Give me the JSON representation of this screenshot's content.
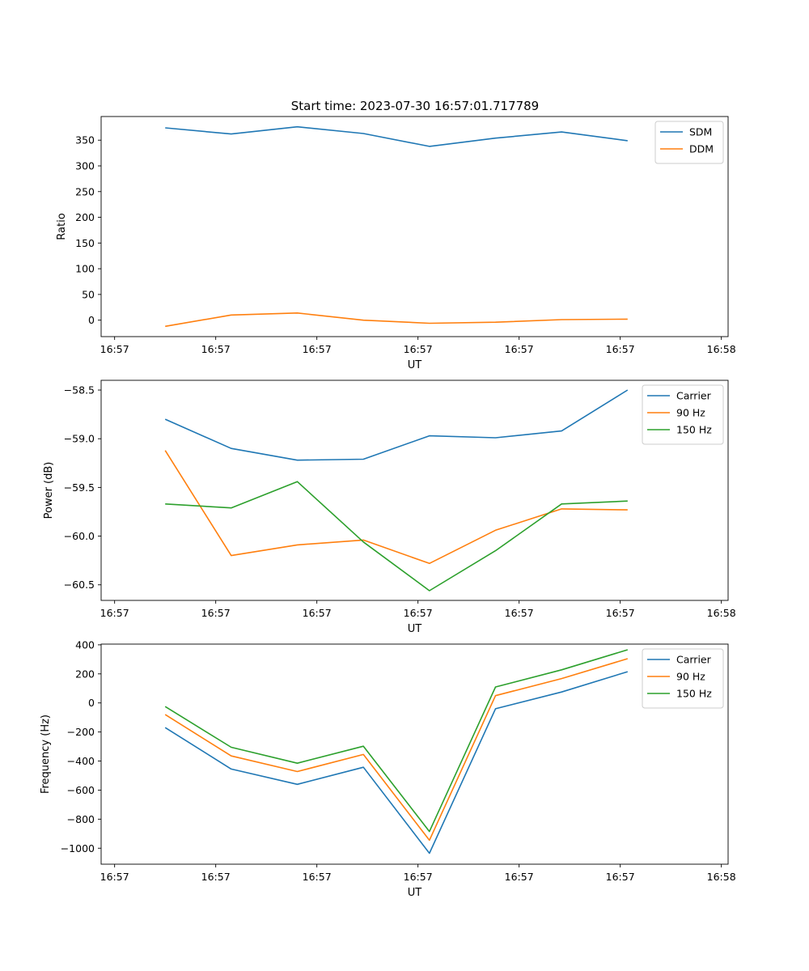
{
  "figure_title": "Start time: 2023-07-30 16:57:01.717789",
  "colors": {
    "c0": "#1f77b4",
    "c1": "#ff7f0e",
    "c2": "#2ca02c"
  },
  "chart_data": [
    {
      "type": "line",
      "title": "Start time: 2023-07-30 16:57:01.717789",
      "xlabel": "UT",
      "ylabel": "Ratio",
      "xlim": [
        0,
        9.3
      ],
      "ylim": [
        -32,
        396
      ],
      "xticks": [
        0.2,
        1.7,
        3.2,
        4.7,
        6.2,
        7.7,
        9.2
      ],
      "xtick_labels": [
        "16:57",
        "16:57",
        "16:57",
        "16:57",
        "16:57",
        "16:57",
        "16:58"
      ],
      "yticks": [
        0,
        50,
        100,
        150,
        200,
        250,
        300,
        350
      ],
      "ytick_labels": [
        "0",
        "50",
        "100",
        "150",
        "200",
        "250",
        "300",
        "350"
      ],
      "legend_position": "top-right",
      "x": [
        0.95,
        1.93,
        2.91,
        3.89,
        4.87,
        5.85,
        6.83,
        7.81
      ],
      "series": [
        {
          "name": "SDM",
          "color": "#1f77b4",
          "values": [
            374,
            362,
            376,
            363,
            338,
            354,
            366,
            349
          ]
        },
        {
          "name": "DDM",
          "color": "#ff7f0e",
          "values": [
            -12,
            10,
            14,
            0,
            -6,
            -4,
            1,
            2
          ]
        }
      ]
    },
    {
      "type": "line",
      "title": "",
      "xlabel": "UT",
      "ylabel": "Power (dB)",
      "xlim": [
        0,
        9.3
      ],
      "ylim": [
        -60.66,
        -58.4
      ],
      "xticks": [
        0.2,
        1.7,
        3.2,
        4.7,
        6.2,
        7.7,
        9.2
      ],
      "xtick_labels": [
        "16:57",
        "16:57",
        "16:57",
        "16:57",
        "16:57",
        "16:57",
        "16:58"
      ],
      "yticks": [
        -60.5,
        -60.0,
        -59.5,
        -59.0,
        -58.5
      ],
      "ytick_labels": [
        "−60.5",
        "−60.0",
        "−59.5",
        "−59.0",
        "−58.5"
      ],
      "legend_position": "top-right",
      "x": [
        0.95,
        1.93,
        2.91,
        3.89,
        4.87,
        5.85,
        6.83,
        7.81
      ],
      "series": [
        {
          "name": "Carrier",
          "color": "#1f77b4",
          "values": [
            -58.8,
            -59.1,
            -59.22,
            -59.21,
            -58.97,
            -58.99,
            -58.92,
            -58.5
          ]
        },
        {
          "name": "90 Hz",
          "color": "#ff7f0e",
          "values": [
            -59.12,
            -60.2,
            -60.09,
            -60.04,
            -60.28,
            -59.94,
            -59.72,
            -59.73
          ]
        },
        {
          "name": "150 Hz",
          "color": "#2ca02c",
          "values": [
            -59.67,
            -59.71,
            -59.44,
            -60.06,
            -60.56,
            -60.15,
            -59.67,
            -59.64
          ]
        }
      ]
    },
    {
      "type": "line",
      "title": "",
      "xlabel": "UT",
      "ylabel": "Frequency (Hz)",
      "xlim": [
        0,
        9.3
      ],
      "ylim": [
        -1110,
        405
      ],
      "xticks": [
        0.2,
        1.7,
        3.2,
        4.7,
        6.2,
        7.7,
        9.2
      ],
      "xtick_labels": [
        "16:57",
        "16:57",
        "16:57",
        "16:57",
        "16:57",
        "16:57",
        "16:58"
      ],
      "yticks": [
        -1000,
        -800,
        -600,
        -400,
        -200,
        0,
        200,
        400
      ],
      "ytick_labels": [
        "−1000",
        "−800",
        "−600",
        "−400",
        "−200",
        "0",
        "200",
        "400"
      ],
      "legend_position": "top-right",
      "x": [
        0.95,
        1.93,
        2.91,
        3.89,
        4.87,
        5.85,
        6.83,
        7.81
      ],
      "series": [
        {
          "name": "Carrier",
          "color": "#1f77b4",
          "values": [
            -170,
            -455,
            -560,
            -443,
            -1035,
            -40,
            75,
            215
          ]
        },
        {
          "name": "90 Hz",
          "color": "#ff7f0e",
          "values": [
            -80,
            -365,
            -472,
            -355,
            -945,
            50,
            168,
            305
          ]
        },
        {
          "name": "150 Hz",
          "color": "#2ca02c",
          "values": [
            -25,
            -305,
            -415,
            -298,
            -885,
            110,
            228,
            366
          ]
        }
      ]
    }
  ]
}
